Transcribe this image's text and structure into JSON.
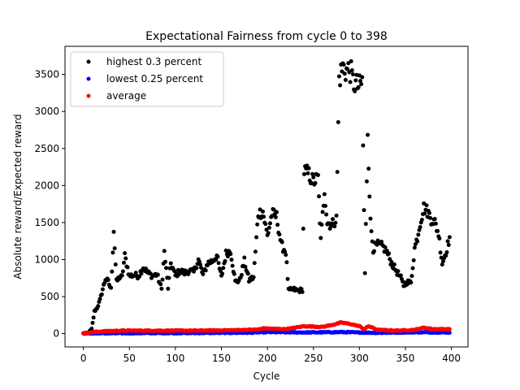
{
  "chart_data": {
    "type": "scatter",
    "title": "Expectational Fairness from cycle 0 to 398",
    "xlabel": "Cycle",
    "ylabel": "Absolute reward/Expected reward",
    "xlim": [
      -20,
      418
    ],
    "ylim": [
      -180,
      3880
    ],
    "xticks": [
      0,
      50,
      100,
      150,
      200,
      250,
      300,
      350,
      400
    ],
    "yticks": [
      0,
      500,
      1000,
      1500,
      2000,
      2500,
      3000,
      3500
    ],
    "grid": false,
    "legend_position": "top-left",
    "x_range": [
      0,
      398
    ],
    "series": [
      {
        "name": "highest 0.3 percent",
        "color": "#000000",
        "breakpoints": [
          [
            0,
            0
          ],
          [
            5,
            5
          ],
          [
            9,
            60
          ],
          [
            12,
            300
          ],
          [
            15,
            350
          ],
          [
            18,
            450
          ],
          [
            21,
            600
          ],
          [
            24,
            740
          ],
          [
            27,
            700
          ],
          [
            30,
            600
          ],
          [
            33,
            1400
          ],
          [
            36,
            700
          ],
          [
            39,
            760
          ],
          [
            42,
            760
          ],
          [
            45,
            1050
          ],
          [
            50,
            780
          ],
          [
            55,
            790
          ],
          [
            60,
            780
          ],
          [
            65,
            900
          ],
          [
            70,
            820
          ],
          [
            75,
            780
          ],
          [
            80,
            800
          ],
          [
            85,
            600
          ],
          [
            88,
            1100
          ],
          [
            92,
            620
          ],
          [
            95,
            950
          ],
          [
            100,
            780
          ],
          [
            105,
            850
          ],
          [
            110,
            820
          ],
          [
            115,
            850
          ],
          [
            120,
            830
          ],
          [
            125,
            1000
          ],
          [
            130,
            790
          ],
          [
            135,
            950
          ],
          [
            140,
            980
          ],
          [
            145,
            1050
          ],
          [
            150,
            760
          ],
          [
            155,
            1080
          ],
          [
            160,
            1120
          ],
          [
            165,
            700
          ],
          [
            170,
            720
          ],
          [
            175,
            980
          ],
          [
            180,
            720
          ],
          [
            185,
            760
          ],
          [
            190,
            1620
          ],
          [
            195,
            1650
          ],
          [
            200,
            1320
          ],
          [
            205,
            1620
          ],
          [
            210,
            1580
          ],
          [
            215,
            1200
          ],
          [
            220,
            1100
          ],
          [
            223,
            580
          ],
          [
            228,
            600
          ],
          [
            233,
            580
          ],
          [
            238,
            590
          ],
          [
            240,
            2200
          ],
          [
            245,
            2150
          ],
          [
            250,
            2050
          ],
          [
            255,
            2100
          ],
          [
            258,
            1250
          ],
          [
            262,
            1950
          ],
          [
            265,
            1500
          ],
          [
            270,
            1470
          ],
          [
            275,
            1550
          ],
          [
            278,
            3450
          ],
          [
            282,
            3600
          ],
          [
            286,
            3550
          ],
          [
            290,
            3560
          ],
          [
            293,
            3400
          ],
          [
            297,
            3350
          ],
          [
            300,
            3330
          ],
          [
            303,
            3400
          ],
          [
            306,
            800
          ],
          [
            309,
            2750
          ],
          [
            312,
            1500
          ],
          [
            315,
            1150
          ],
          [
            320,
            1200
          ],
          [
            325,
            1180
          ],
          [
            330,
            1100
          ],
          [
            335,
            950
          ],
          [
            340,
            850
          ],
          [
            345,
            750
          ],
          [
            348,
            650
          ],
          [
            352,
            700
          ],
          [
            356,
            680
          ],
          [
            360,
            1150
          ],
          [
            363,
            1300
          ],
          [
            366,
            1500
          ],
          [
            370,
            1700
          ],
          [
            374,
            1650
          ],
          [
            378,
            1550
          ],
          [
            382,
            1500
          ],
          [
            386,
            1350
          ],
          [
            390,
            950
          ],
          [
            394,
            1100
          ],
          [
            398,
            1300
          ]
        ]
      },
      {
        "name": "lowest 0.25 percent",
        "color": "#0000ff",
        "breakpoints": [
          [
            0,
            0
          ],
          [
            20,
            3
          ],
          [
            60,
            6
          ],
          [
            120,
            8
          ],
          [
            180,
            12
          ],
          [
            200,
            20
          ],
          [
            240,
            15
          ],
          [
            280,
            20
          ],
          [
            320,
            10
          ],
          [
            360,
            18
          ],
          [
            398,
            15
          ]
        ]
      },
      {
        "name": "average",
        "color": "#ff0000",
        "breakpoints": [
          [
            0,
            0
          ],
          [
            10,
            20
          ],
          [
            20,
            30
          ],
          [
            40,
            40
          ],
          [
            80,
            40
          ],
          [
            120,
            40
          ],
          [
            160,
            45
          ],
          [
            190,
            55
          ],
          [
            195,
            70
          ],
          [
            220,
            60
          ],
          [
            240,
            100
          ],
          [
            260,
            90
          ],
          [
            275,
            130
          ],
          [
            280,
            150
          ],
          [
            290,
            130
          ],
          [
            300,
            100
          ],
          [
            305,
            60
          ],
          [
            310,
            100
          ],
          [
            320,
            50
          ],
          [
            340,
            40
          ],
          [
            360,
            50
          ],
          [
            370,
            80
          ],
          [
            380,
            60
          ],
          [
            398,
            60
          ]
        ]
      }
    ]
  }
}
